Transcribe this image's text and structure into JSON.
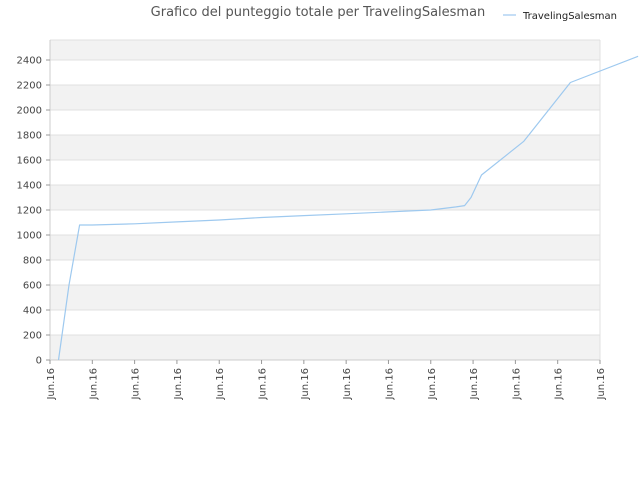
{
  "chart_data": {
    "type": "line",
    "title": "Grafico del punteggio totale per TravelingSalesman",
    "xlabel": "",
    "ylabel": "",
    "ylim": [
      0,
      2560
    ],
    "yticks": [
      0,
      200,
      400,
      600,
      800,
      1000,
      1200,
      1400,
      1600,
      1800,
      2000,
      2200,
      2400
    ],
    "xticks": [
      "Jun.16",
      "Jun.16",
      "Jun.16",
      "Jun.16",
      "Jun.16",
      "Jun.16",
      "Jun.16",
      "Jun.16",
      "Jun.16",
      "Jun.16",
      "Jun.16",
      "Jun.16",
      "Jun.16",
      "Jun.16"
    ],
    "grid": true,
    "legend_position": "top-right",
    "series": [
      {
        "name": "TravelingSalesman",
        "color": "#9ec9ef",
        "x": [
          0.2,
          0.45,
          0.7,
          1,
          2,
          3,
          4,
          5,
          6,
          7,
          8,
          9,
          9.6,
          9.8,
          9.95,
          10.2,
          11.2,
          12.3,
          13.9
        ],
        "values": [
          0,
          600,
          1080,
          1080,
          1090,
          1105,
          1120,
          1140,
          1155,
          1170,
          1185,
          1200,
          1225,
          1235,
          1300,
          1480,
          1750,
          2220,
          2430
        ]
      }
    ]
  }
}
